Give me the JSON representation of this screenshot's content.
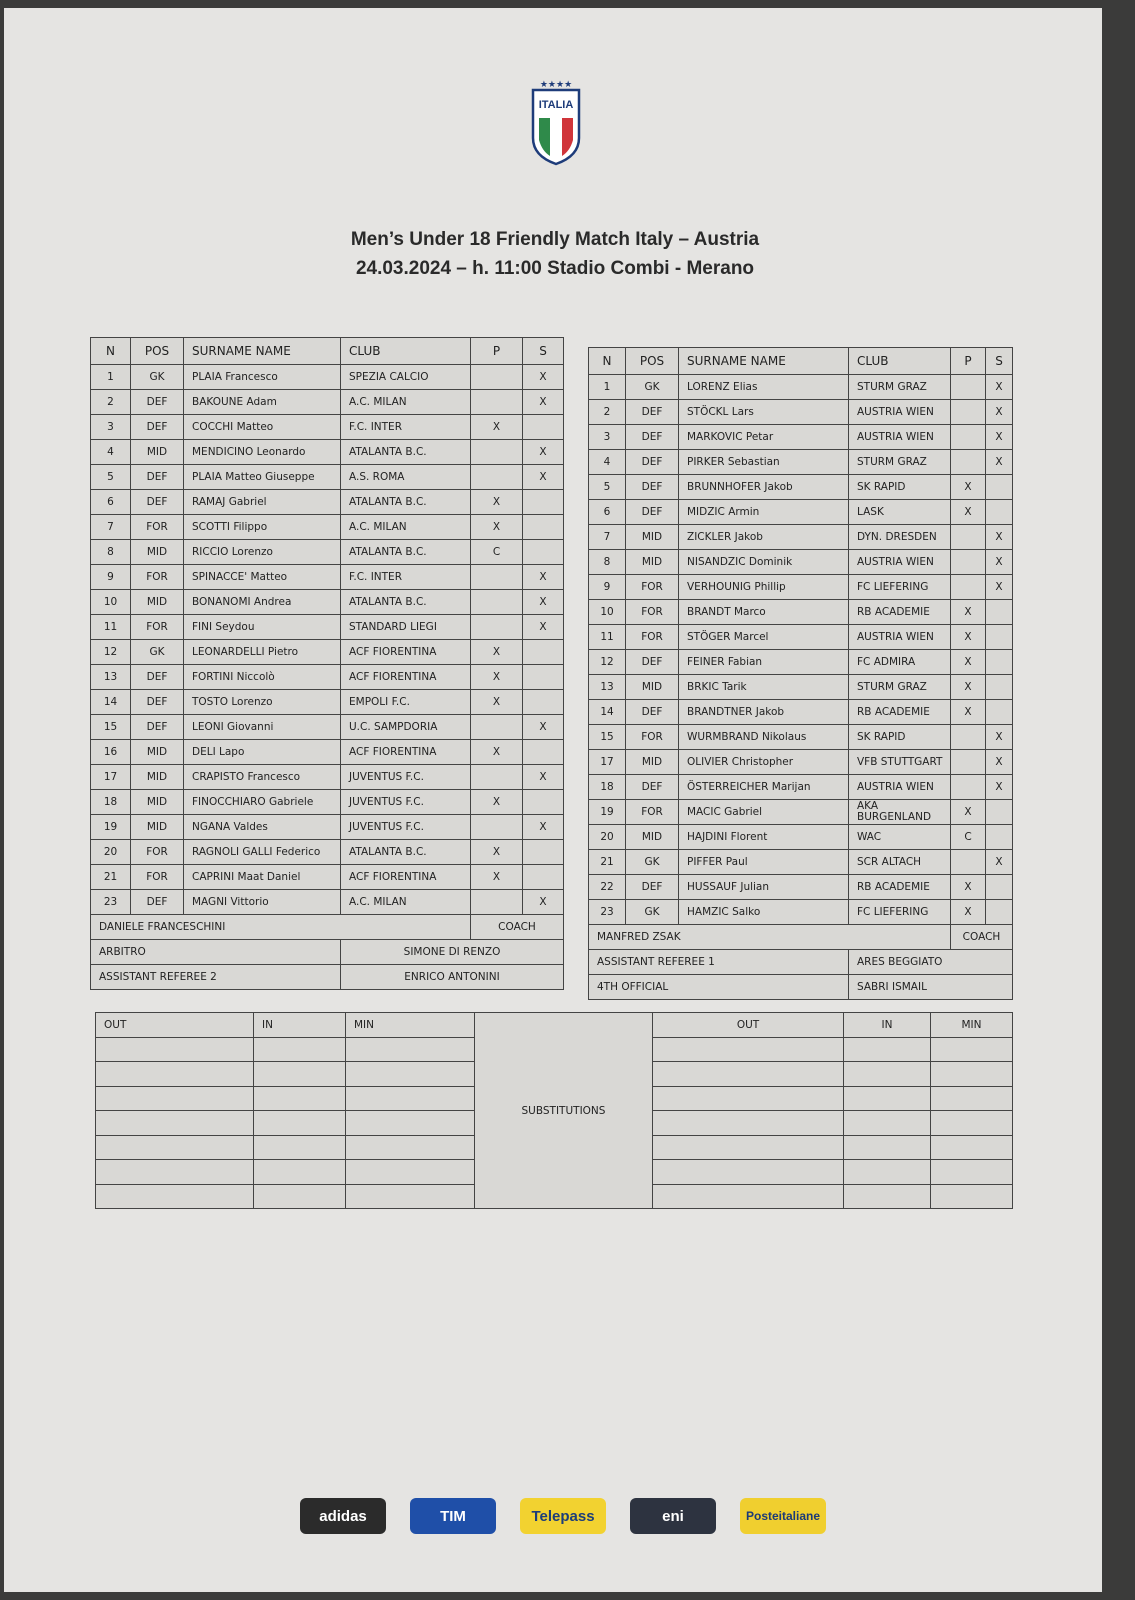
{
  "crest": {
    "text": "ITALIA",
    "stars": 4
  },
  "header": {
    "line1": "Men’s Under 18 Friendly Match Italy – Austria",
    "line2": "24.03.2024 –  h. 11:00 Stadio Combi - Merano"
  },
  "columns": {
    "n": "N",
    "pos": "POS",
    "name": "SURNAME NAME",
    "club": "CLUB",
    "p": "P",
    "s": "S"
  },
  "italy": {
    "players": [
      {
        "n": "1",
        "pos": "GK",
        "name": "PLAIA Francesco",
        "club": "SPEZIA CALCIO",
        "p": "",
        "s": "X"
      },
      {
        "n": "2",
        "pos": "DEF",
        "name": "BAKOUNE Adam",
        "club": "A.C. MILAN",
        "p": "",
        "s": "X"
      },
      {
        "n": "3",
        "pos": "DEF",
        "name": "COCCHI Matteo",
        "club": "F.C. INTER",
        "p": "X",
        "s": ""
      },
      {
        "n": "4",
        "pos": "MID",
        "name": "MENDICINO Leonardo",
        "club": "ATALANTA B.C.",
        "p": "",
        "s": "X"
      },
      {
        "n": "5",
        "pos": "DEF",
        "name": "PLAIA Matteo Giuseppe",
        "club": "A.S. ROMA",
        "p": "",
        "s": "X"
      },
      {
        "n": "6",
        "pos": "DEF",
        "name": "RAMAJ Gabriel",
        "club": "ATALANTA B.C.",
        "p": "X",
        "s": ""
      },
      {
        "n": "7",
        "pos": "FOR",
        "name": "SCOTTI Filippo",
        "club": "A.C. MILAN",
        "p": "X",
        "s": ""
      },
      {
        "n": "8",
        "pos": "MID",
        "name": "RICCIO Lorenzo",
        "club": "ATALANTA B.C.",
        "p": "C",
        "s": ""
      },
      {
        "n": "9",
        "pos": "FOR",
        "name": "SPINACCE' Matteo",
        "club": "F.C. INTER",
        "p": "",
        "s": "X"
      },
      {
        "n": "10",
        "pos": "MID",
        "name": "BONANOMI Andrea",
        "club": "ATALANTA B.C.",
        "p": "",
        "s": "X"
      },
      {
        "n": "11",
        "pos": "FOR",
        "name": "FINI Seydou",
        "club": "STANDARD LIEGI",
        "p": "",
        "s": "X"
      },
      {
        "n": "12",
        "pos": "GK",
        "name": "LEONARDELLI Pietro",
        "club": "ACF FIORENTINA",
        "p": "X",
        "s": ""
      },
      {
        "n": "13",
        "pos": "DEF",
        "name": "FORTINI Niccolò",
        "club": "ACF FIORENTINA",
        "p": "X",
        "s": ""
      },
      {
        "n": "14",
        "pos": "DEF",
        "name": "TOSTO Lorenzo",
        "club": "EMPOLI F.C.",
        "p": "X",
        "s": ""
      },
      {
        "n": "15",
        "pos": "DEF",
        "name": "LEONI Giovanni",
        "club": "U.C. SAMPDORIA",
        "p": "",
        "s": "X"
      },
      {
        "n": "16",
        "pos": "MID",
        "name": "DELI Lapo",
        "club": "ACF FIORENTINA",
        "p": "X",
        "s": ""
      },
      {
        "n": "17",
        "pos": "MID",
        "name": "CRAPISTO Francesco",
        "club": "JUVENTUS F.C.",
        "p": "",
        "s": "X"
      },
      {
        "n": "18",
        "pos": "MID",
        "name": "FINOCCHIARO Gabriele",
        "club": "JUVENTUS F.C.",
        "p": "X",
        "s": ""
      },
      {
        "n": "19",
        "pos": "MID",
        "name": "NGANA Valdes",
        "club": "JUVENTUS F.C.",
        "p": "",
        "s": "X"
      },
      {
        "n": "20",
        "pos": "FOR",
        "name": "RAGNOLI GALLI Federico",
        "club": "ATALANTA B.C.",
        "p": "X",
        "s": ""
      },
      {
        "n": "21",
        "pos": "FOR",
        "name": "CAPRINI Maat Daniel",
        "club": "ACF FIORENTINA",
        "p": "X",
        "s": ""
      },
      {
        "n": "23",
        "pos": "DEF",
        "name": "MAGNI Vittorio",
        "club": "A.C. MILAN",
        "p": "",
        "s": "X"
      }
    ],
    "coach": "DANIELE FRANCESCHINI",
    "coach_label": "COACH",
    "officials": [
      {
        "role": "ARBITRO",
        "name": "SIMONE DI RENZO"
      },
      {
        "role": "ASSISTANT REFEREE 2",
        "name": "ENRICO ANTONINI"
      }
    ]
  },
  "austria": {
    "players": [
      {
        "n": "1",
        "pos": "GK",
        "name": "LORENZ Elias",
        "club": "STURM GRAZ",
        "p": "",
        "s": "X"
      },
      {
        "n": "2",
        "pos": "DEF",
        "name": "STÖCKL Lars",
        "club": "AUSTRIA WIEN",
        "p": "",
        "s": "X"
      },
      {
        "n": "3",
        "pos": "DEF",
        "name": "MARKOVIC Petar",
        "club": "AUSTRIA WIEN",
        "p": "",
        "s": "X"
      },
      {
        "n": "4",
        "pos": "DEF",
        "name": "PIRKER Sebastian",
        "club": "STURM GRAZ",
        "p": "",
        "s": "X"
      },
      {
        "n": "5",
        "pos": "DEF",
        "name": "BRUNNHOFER Jakob",
        "club": "SK RAPID",
        "p": "X",
        "s": ""
      },
      {
        "n": "6",
        "pos": "DEF",
        "name": "MIDZIC Armin",
        "club": "LASK",
        "p": "X",
        "s": ""
      },
      {
        "n": "7",
        "pos": "MID",
        "name": "ZICKLER Jakob",
        "club": "DYN. DRESDEN",
        "p": "",
        "s": "X"
      },
      {
        "n": "8",
        "pos": "MID",
        "name": "NISANDZIC Dominik",
        "club": "AUSTRIA WIEN",
        "p": "",
        "s": "X"
      },
      {
        "n": "9",
        "pos": "FOR",
        "name": "VERHOUNIG Phillip",
        "club": "FC LIEFERING",
        "p": "",
        "s": "X"
      },
      {
        "n": "10",
        "pos": "FOR",
        "name": "BRANDT Marco",
        "club": "RB ACADEMIE",
        "p": "X",
        "s": ""
      },
      {
        "n": "11",
        "pos": "FOR",
        "name": "STÖGER Marcel",
        "club": "AUSTRIA WIEN",
        "p": "X",
        "s": ""
      },
      {
        "n": "12",
        "pos": "DEF",
        "name": "FEINER Fabian",
        "club": "FC ADMIRA",
        "p": "X",
        "s": ""
      },
      {
        "n": "13",
        "pos": "MID",
        "name": "BRKIC Tarik",
        "club": "STURM GRAZ",
        "p": "X",
        "s": ""
      },
      {
        "n": "14",
        "pos": "DEF",
        "name": "BRANDTNER Jakob",
        "club": "RB ACADEMIE",
        "p": "X",
        "s": ""
      },
      {
        "n": "15",
        "pos": "FOR",
        "name": "WURMBRAND Nikolaus",
        "club": "SK RAPID",
        "p": "",
        "s": "X"
      },
      {
        "n": "17",
        "pos": "MID",
        "name": "OLIVIER Christopher",
        "club": "VFB STUTTGART",
        "p": "",
        "s": "X"
      },
      {
        "n": "18",
        "pos": "DEF",
        "name": "ÖSTERREICHER Marijan",
        "club": "AUSTRIA WIEN",
        "p": "",
        "s": "X"
      },
      {
        "n": "19",
        "pos": "FOR",
        "name": "MACIC Gabriel",
        "club": "AKA BURGENLAND",
        "p": "X",
        "s": ""
      },
      {
        "n": "20",
        "pos": "MID",
        "name": "HAJDINI Florent",
        "club": "WAC",
        "p": "C",
        "s": ""
      },
      {
        "n": "21",
        "pos": "GK",
        "name": "PIFFER Paul",
        "club": "SCR ALTACH",
        "p": "",
        "s": "X"
      },
      {
        "n": "22",
        "pos": "DEF",
        "name": "HUSSAUF Julian",
        "club": "RB ACADEMIE",
        "p": "X",
        "s": ""
      },
      {
        "n": "23",
        "pos": "GK",
        "name": "HAMZIC Salko",
        "club": "FC LIEFERING",
        "p": "X",
        "s": ""
      }
    ],
    "coach": "MANFRED ZSAK",
    "coach_label": "COACH",
    "officials": [
      {
        "role": "ASSISTANT REFEREE 1",
        "name": "ARES BEGGIATO"
      },
      {
        "role": "4TH OFFICIAL",
        "name": "SABRI ISMAIL"
      }
    ]
  },
  "substitutions": {
    "out": "OUT",
    "in": "IN",
    "min": "MIN",
    "label": "SUBSTITUTIONS",
    "rows": 7
  },
  "sponsors": [
    {
      "name": "adidas",
      "bg": "#2b2b2b",
      "color": "#ffffff"
    },
    {
      "name": "TIM",
      "bg": "#1f4fa8",
      "color": "#ffffff"
    },
    {
      "name": "Telepass",
      "bg": "#f2d230",
      "color": "#1d3e7a"
    },
    {
      "name": "eni",
      "bg": "#2d3340",
      "color": "#ffffff"
    },
    {
      "name": "Posteitaliane",
      "bg": "#f0cf2f",
      "color": "#1c3a78"
    }
  ]
}
